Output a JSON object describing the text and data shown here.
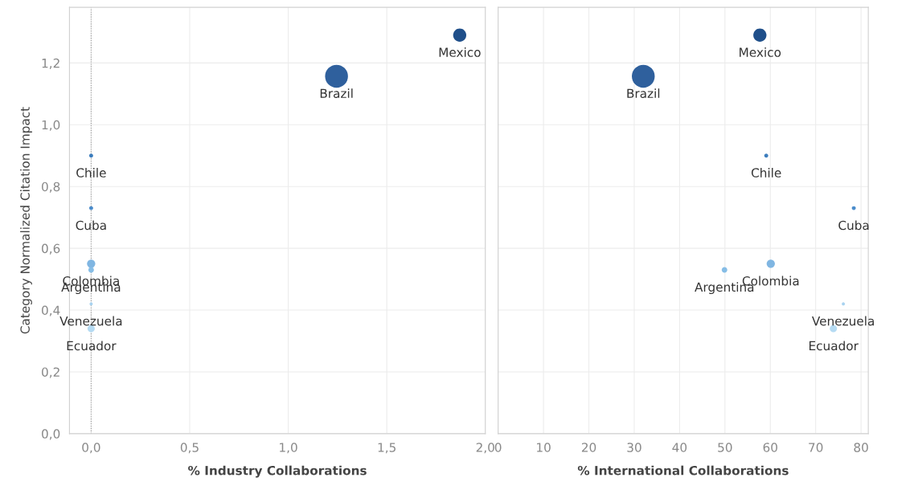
{
  "chart_data": [
    {
      "type": "bubble",
      "xlabel": "% Industry Collaborations",
      "ylabel": "Category Normalized Citation Impact",
      "x": [
        1.87,
        1.245,
        0.0,
        0.0,
        0.0,
        0.0,
        0.0,
        0.0
      ],
      "values": [
        1.29,
        1.157,
        0.9,
        0.73,
        0.55,
        0.53,
        0.42,
        0.34
      ],
      "sizes": [
        0.33,
        1,
        0.03,
        0.03,
        0.13,
        0.06,
        0.02,
        0.1
      ],
      "colors": [
        "#1f4f8a",
        "#2f609d",
        "#3c7dbd",
        "#4b8ccb",
        "#80b6e2",
        "#86bde6",
        "#a9d3f0",
        "#b5dbf3"
      ],
      "annotations": [
        {
          "text": "Mexico",
          "x": 1.87,
          "y": 1.29
        },
        {
          "text": "Brazil",
          "x": 1.245,
          "y": 1.157
        },
        {
          "text": "Chile",
          "x": 0.0,
          "y": 0.9
        },
        {
          "text": "Cuba",
          "x": 0.0,
          "y": 0.73
        },
        {
          "text": "Colombia",
          "x": 0.0,
          "y": 0.55
        },
        {
          "text": "Argentina",
          "x": 0.0,
          "y": 0.53
        },
        {
          "text": "Venezuela",
          "x": 0.0,
          "y": 0.42
        },
        {
          "text": "Ecuador",
          "x": 0.0,
          "y": 0.34
        }
      ],
      "xlim": [
        -0.11,
        2.0
      ],
      "xticks": [
        {
          "value": 0,
          "label": "0,0"
        },
        {
          "value": 0.5,
          "label": "0,5"
        },
        {
          "value": 1.0,
          "label": "1,0"
        },
        {
          "value": 1.5,
          "label": "1,5"
        },
        {
          "value": 2.0,
          "label": "2,0"
        }
      ],
      "ylim": [
        0,
        1.38
      ],
      "yticks": [
        {
          "value": 0,
          "label": "0,0"
        },
        {
          "value": 0.2,
          "label": "0,2"
        },
        {
          "value": 0.4,
          "label": "0,4"
        },
        {
          "value": 0.6,
          "label": "0,6"
        },
        {
          "value": 0.8,
          "label": "0,8"
        },
        {
          "value": 1.0,
          "label": "1,0"
        },
        {
          "value": 1.2,
          "label": "1,2"
        }
      ],
      "ref_lines": [
        {
          "axis": "x",
          "value": 0,
          "color": "#999999",
          "line_style": "dotted"
        }
      ],
      "grid": true
    },
    {
      "type": "bubble",
      "xlabel": "% International Collaborations",
      "x": [
        57.7,
        32.0,
        59.1,
        78.4,
        60.1,
        49.9,
        76.1,
        73.9
      ],
      "values": [
        1.29,
        1.157,
        0.9,
        0.73,
        0.55,
        0.53,
        0.42,
        0.34
      ],
      "sizes": [
        0.33,
        1,
        0.03,
        0.03,
        0.13,
        0.06,
        0.02,
        0.1
      ],
      "colors": [
        "#1f4f8a",
        "#2f609d",
        "#3c7dbd",
        "#4b8ccb",
        "#80b6e2",
        "#86bde6",
        "#a9d3f0",
        "#b5dbf3"
      ],
      "annotations": [
        {
          "text": "Mexico",
          "x": 57.7,
          "y": 1.29
        },
        {
          "text": "Brazil",
          "x": 32.0,
          "y": 1.157
        },
        {
          "text": "Chile",
          "x": 59.1,
          "y": 0.9
        },
        {
          "text": "Cuba",
          "x": 78.4,
          "y": 0.73
        },
        {
          "text": "Colombia",
          "x": 60.1,
          "y": 0.55
        },
        {
          "text": "Argentina",
          "x": 49.9,
          "y": 0.53
        },
        {
          "text": "Venezuela",
          "x": 76.1,
          "y": 0.42
        },
        {
          "text": "Ecuador",
          "x": 73.9,
          "y": 0.34
        }
      ],
      "xlim": [
        0,
        81.6
      ],
      "xticks": [
        0,
        10,
        20,
        30,
        40,
        50,
        60,
        70,
        80
      ],
      "ylim": [
        0,
        1.38
      ],
      "yticks": [
        {
          "value": 0,
          "label": null
        },
        {
          "value": 0.2,
          "label": null
        },
        {
          "value": 0.4,
          "label": null
        },
        {
          "value": 0.6,
          "label": null
        },
        {
          "value": 0.8,
          "label": null
        },
        {
          "value": 1.0,
          "label": null
        },
        {
          "value": 1.2,
          "label": null
        }
      ],
      "tick_labels": "x",
      "grid": true
    }
  ]
}
